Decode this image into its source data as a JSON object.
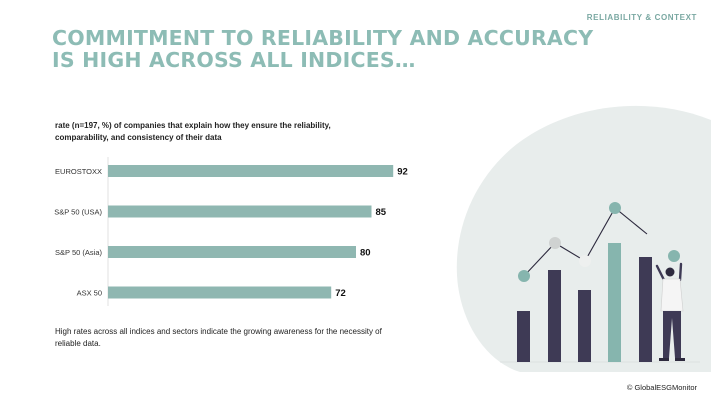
{
  "tag": "RELIABILITY & CONTEXT",
  "headline": "COMMITMENT TO RELIABILITY AND ACCURACY IS HIGH ACROSS ALL INDICES…",
  "footnote": "High rates across all indices and sectors indicate the growing awareness for the necessity of reliable data.",
  "copyright": "© GlobalESGMonitor",
  "colors": {
    "bar": "#8fb7b1",
    "headline": "#8dbcb5",
    "illustration_blob": "#e8edec",
    "illustration_dark": "#3e3a55",
    "illustration_teal": "#86b5ae"
  },
  "chart_data": {
    "type": "bar",
    "orientation": "horizontal",
    "title": "rate (n=197, %) of companies that explain how they ensure the reliability, comparability, and consistency of their data",
    "categories": [
      "EUROSTOXX",
      "S&P 50 (USA)",
      "S&P 50 (Asia)",
      "ASX 50"
    ],
    "values": [
      92,
      85,
      80,
      72
    ],
    "xlim": [
      0,
      100
    ],
    "grid": false,
    "legend": "none",
    "data_labels": true
  }
}
